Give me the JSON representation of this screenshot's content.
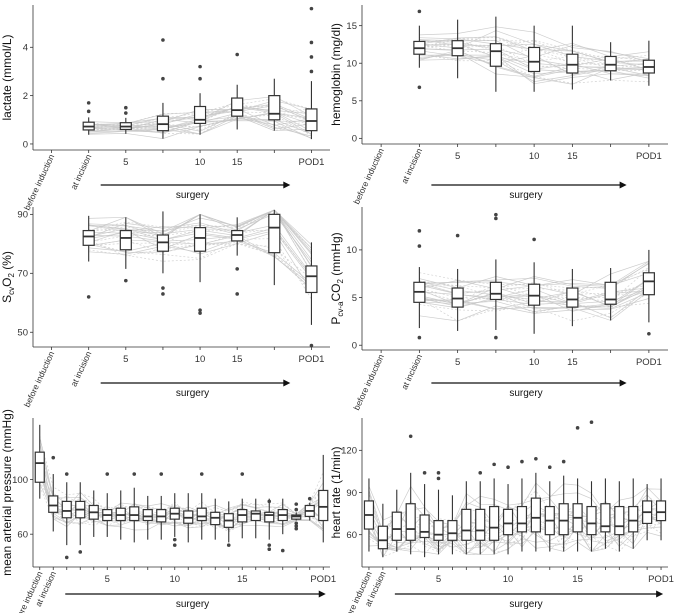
{
  "chart_data": [
    {
      "type": "box",
      "id": "lactate",
      "ylabel": "lactate (mmol/L)",
      "yticks": [
        0,
        2,
        4
      ],
      "ylim": [
        -0.25,
        5.75
      ],
      "x_positions": [
        0,
        1,
        2,
        3,
        4,
        5,
        6,
        7
      ],
      "boxes": [
        {
          "x": 1,
          "q1": 0.58,
          "med": 0.72,
          "q3": 0.9,
          "lo": 0.38,
          "hi": 1.1,
          "out": [
            1.35,
            1.7
          ]
        },
        {
          "x": 2,
          "q1": 0.6,
          "med": 0.72,
          "q3": 0.88,
          "lo": 0.42,
          "hi": 1.08,
          "out": [
            1.28,
            1.5
          ]
        },
        {
          "x": 3,
          "q1": 0.55,
          "med": 0.82,
          "q3": 1.15,
          "lo": 0.22,
          "hi": 1.7,
          "out": [
            2.7,
            4.3
          ]
        },
        {
          "x": 4,
          "q1": 0.85,
          "med": 1.0,
          "q3": 1.55,
          "lo": 0.38,
          "hi": 2.1,
          "out": [
            2.7,
            3.2
          ]
        },
        {
          "x": 5,
          "q1": 1.15,
          "med": 1.4,
          "q3": 1.9,
          "lo": 0.6,
          "hi": 2.45,
          "out": [
            3.7
          ]
        },
        {
          "x": 6,
          "q1": 1.0,
          "med": 1.25,
          "q3": 2.0,
          "lo": 0.55,
          "hi": 2.7,
          "out": []
        },
        {
          "x": 7,
          "q1": 0.55,
          "med": 0.95,
          "q3": 1.45,
          "lo": 0.2,
          "hi": 2.6,
          "out": [
            3.0,
            3.6,
            4.2,
            5.6
          ]
        }
      ]
    },
    {
      "type": "box",
      "id": "hemoglobin",
      "ylabel": "hemoglobin (mg/dl)",
      "yticks": [
        0,
        5,
        10,
        15
      ],
      "ylim": [
        -0.75,
        17.75
      ],
      "x_positions": [
        0,
        1,
        2,
        3,
        4,
        5,
        6,
        7
      ],
      "boxes": [
        {
          "x": 1,
          "q1": 11.2,
          "med": 12.0,
          "q3": 12.9,
          "lo": 9.4,
          "hi": 15.0,
          "out": [
            6.8,
            16.9
          ]
        },
        {
          "x": 2,
          "q1": 11.0,
          "med": 12.0,
          "q3": 13.0,
          "lo": 8.0,
          "hi": 15.8,
          "out": []
        },
        {
          "x": 3,
          "q1": 9.6,
          "med": 11.6,
          "q3": 12.6,
          "lo": 6.2,
          "hi": 16.2,
          "out": []
        },
        {
          "x": 4,
          "q1": 8.9,
          "med": 10.2,
          "q3": 12.1,
          "lo": 6.2,
          "hi": 15.0,
          "out": []
        },
        {
          "x": 5,
          "q1": 8.7,
          "med": 9.8,
          "q3": 11.2,
          "lo": 6.5,
          "hi": 15.0,
          "out": []
        },
        {
          "x": 6,
          "q1": 9.0,
          "med": 9.8,
          "q3": 10.9,
          "lo": 7.7,
          "hi": 12.8,
          "out": []
        },
        {
          "x": 7,
          "q1": 8.7,
          "med": 9.5,
          "q3": 10.4,
          "lo": 7.0,
          "hi": 13.0,
          "out": []
        }
      ]
    },
    {
      "type": "box",
      "id": "scvo2",
      "ylabel": "S(cv)O(2) (%)",
      "yticks": [
        50,
        70,
        90
      ],
      "ylim": [
        45,
        92.5
      ],
      "x_positions": [
        0,
        1,
        2,
        3,
        4,
        5,
        6,
        7
      ],
      "boxes": [
        {
          "x": 1,
          "q1": 79.5,
          "med": 82.5,
          "q3": 84.5,
          "lo": 74.0,
          "hi": 89.5,
          "out": [
            62.0
          ]
        },
        {
          "x": 2,
          "q1": 78.0,
          "med": 82.0,
          "q3": 84.5,
          "lo": 71.5,
          "hi": 89.0,
          "out": [
            67.5
          ]
        },
        {
          "x": 3,
          "q1": 77.5,
          "med": 80.5,
          "q3": 83.0,
          "lo": 70.0,
          "hi": 91.0,
          "out": [
            65.0,
            63.0
          ]
        },
        {
          "x": 4,
          "q1": 77.5,
          "med": 82.0,
          "q3": 85.5,
          "lo": 67.0,
          "hi": 90.0,
          "out": [
            57.5,
            56.5
          ]
        },
        {
          "x": 5,
          "q1": 81.0,
          "med": 83.0,
          "q3": 84.5,
          "lo": 76.0,
          "hi": 89.0,
          "out": [
            71.5,
            63.0
          ]
        },
        {
          "x": 6,
          "q1": 77.0,
          "med": 85.5,
          "q3": 90.0,
          "lo": 66.0,
          "hi": 91.5,
          "out": []
        },
        {
          "x": 7,
          "q1": 63.5,
          "med": 69.0,
          "q3": 72.5,
          "lo": 52.5,
          "hi": 80.5,
          "out": [
            45.5
          ]
        }
      ]
    },
    {
      "type": "box",
      "id": "pcva_co2",
      "ylabel": "P(cv-a)CO(2) (mmHg)",
      "yticks": [
        0,
        5,
        10
      ],
      "ylim": [
        -0.5,
        14.5
      ],
      "x_positions": [
        0,
        1,
        2,
        3,
        4,
        5,
        6,
        7
      ],
      "boxes": [
        {
          "x": 1,
          "q1": 4.5,
          "med": 5.6,
          "q3": 6.6,
          "lo": 1.8,
          "hi": 8.2,
          "out": [
            0.8,
            10.4,
            12.0
          ]
        },
        {
          "x": 2,
          "q1": 4.0,
          "med": 4.9,
          "q3": 6.0,
          "lo": 1.5,
          "hi": 8.0,
          "out": [
            11.5
          ]
        },
        {
          "x": 3,
          "q1": 4.8,
          "med": 5.4,
          "q3": 6.6,
          "lo": 1.6,
          "hi": 9.0,
          "out": [
            0.8,
            13.3,
            13.7
          ]
        },
        {
          "x": 4,
          "q1": 4.2,
          "med": 5.2,
          "q3": 6.4,
          "lo": 1.2,
          "hi": 8.7,
          "out": [
            11.1
          ]
        },
        {
          "x": 5,
          "q1": 4.0,
          "med": 4.8,
          "q3": 6.0,
          "lo": 2.0,
          "hi": 8.0,
          "out": []
        },
        {
          "x": 6,
          "q1": 4.3,
          "med": 4.8,
          "q3": 6.6,
          "lo": 2.6,
          "hi": 8.1,
          "out": []
        },
        {
          "x": 7,
          "q1": 5.3,
          "med": 6.7,
          "q3": 7.6,
          "lo": 2.4,
          "hi": 10.0,
          "out": [
            1.2
          ]
        }
      ]
    },
    {
      "type": "box",
      "id": "map",
      "ylabel": "mean arterial pressure (mmHg)",
      "yticks": [
        60,
        100
      ],
      "ylim": [
        36,
        145
      ],
      "boxes": [
        {
          "x": 0,
          "q1": 98.0,
          "med": 112.0,
          "q3": 120.0,
          "lo": 86.0,
          "hi": 140.0,
          "out": []
        },
        {
          "x": 1,
          "q1": 76.0,
          "med": 81.0,
          "q3": 88.0,
          "lo": 62.0,
          "hi": 104.0,
          "out": [
            116.0
          ]
        },
        {
          "x": 2,
          "q1": 72.0,
          "med": 77.0,
          "q3": 84.0,
          "lo": 52.0,
          "hi": 98.0,
          "out": [
            43.0,
            104.0
          ]
        },
        {
          "x": 3,
          "q1": 72.0,
          "med": 78.0,
          "q3": 84.0,
          "lo": 52.0,
          "hi": 98.0,
          "out": [
            47.0
          ]
        },
        {
          "x": 4,
          "q1": 71.0,
          "med": 76.0,
          "q3": 81.0,
          "lo": 58.0,
          "hi": 92.0,
          "out": []
        },
        {
          "x": 5,
          "q1": 70.0,
          "med": 74.0,
          "q3": 78.0,
          "lo": 58.0,
          "hi": 90.0,
          "out": [
            104.0
          ]
        },
        {
          "x": 6,
          "q1": 70.0,
          "med": 74.0,
          "q3": 79.0,
          "lo": 56.0,
          "hi": 92.0,
          "out": []
        },
        {
          "x": 7,
          "q1": 70.0,
          "med": 74.0,
          "q3": 80.0,
          "lo": 54.0,
          "hi": 94.0,
          "out": [
            104.0
          ]
        },
        {
          "x": 8,
          "q1": 70.0,
          "med": 73.0,
          "q3": 78.0,
          "lo": 56.0,
          "hi": 88.0,
          "out": []
        },
        {
          "x": 9,
          "q1": 69.0,
          "med": 73.0,
          "q3": 78.0,
          "lo": 56.0,
          "hi": 88.0,
          "out": [
            104.0
          ]
        },
        {
          "x": 10,
          "q1": 71.0,
          "med": 75.0,
          "q3": 79.0,
          "lo": 58.0,
          "hi": 90.0,
          "out": [
            52.0,
            56.0
          ]
        },
        {
          "x": 11,
          "q1": 68.0,
          "med": 72.0,
          "q3": 77.0,
          "lo": 54.0,
          "hi": 90.0,
          "out": []
        },
        {
          "x": 12,
          "q1": 70.0,
          "med": 73.0,
          "q3": 79.0,
          "lo": 56.0,
          "hi": 90.0,
          "out": [
            104.0
          ]
        },
        {
          "x": 13,
          "q1": 67.0,
          "med": 72.0,
          "q3": 76.0,
          "lo": 56.0,
          "hi": 86.0,
          "out": []
        },
        {
          "x": 14,
          "q1": 65.0,
          "med": 70.0,
          "q3": 75.0,
          "lo": 54.0,
          "hi": 84.0,
          "out": [
            52.0
          ]
        },
        {
          "x": 15,
          "q1": 69.0,
          "med": 74.0,
          "q3": 78.0,
          "lo": 57.0,
          "hi": 86.0,
          "out": [
            104.0
          ]
        },
        {
          "x": 16,
          "q1": 70.0,
          "med": 75.0,
          "q3": 77.0,
          "lo": 57.0,
          "hi": 86.0,
          "out": []
        },
        {
          "x": 17,
          "q1": 69.0,
          "med": 74.0,
          "q3": 76.0,
          "lo": 56.0,
          "hi": 86.0,
          "out": [
            84.0,
            52.0,
            49.0
          ]
        },
        {
          "x": 18,
          "q1": 70.0,
          "med": 74.0,
          "q3": 78.0,
          "lo": 60.0,
          "hi": 86.0,
          "out": [
            48.0
          ]
        },
        {
          "x": 19,
          "q1": 71.0,
          "med": 73.0,
          "q3": 74.0,
          "lo": 70.0,
          "hi": 76.0,
          "out": [
            82.0,
            78.0,
            68.0,
            66.0,
            64.0
          ]
        },
        {
          "x": 20,
          "q1": 73.0,
          "med": 77.0,
          "q3": 81.0,
          "lo": 70.0,
          "hi": 83.0,
          "out": [
            86.0
          ]
        },
        {
          "x": 21,
          "q1": 70.0,
          "med": 80.0,
          "q3": 92.0,
          "lo": 54.0,
          "hi": 118.0,
          "out": []
        }
      ]
    },
    {
      "type": "box",
      "id": "hr",
      "ylabel": "heart rate (1/min)",
      "yticks": [
        60,
        90,
        120
      ],
      "ylim": [
        37,
        143
      ],
      "boxes": [
        {
          "x": 0,
          "q1": 64.0,
          "med": 74.0,
          "q3": 84.0,
          "lo": 48.0,
          "hi": 100.0,
          "out": []
        },
        {
          "x": 1,
          "q1": 50.0,
          "med": 56.0,
          "q3": 66.0,
          "lo": 44.0,
          "hi": 82.0,
          "out": []
        },
        {
          "x": 2,
          "q1": 56.0,
          "med": 64.0,
          "q3": 76.0,
          "lo": 48.0,
          "hi": 92.0,
          "out": []
        },
        {
          "x": 3,
          "q1": 56.0,
          "med": 64.0,
          "q3": 82.0,
          "lo": 46.0,
          "hi": 104.0,
          "out": [
            130.0
          ]
        },
        {
          "x": 4,
          "q1": 58.0,
          "med": 62.0,
          "q3": 74.0,
          "lo": 44.0,
          "hi": 96.0,
          "out": [
            104.0
          ]
        },
        {
          "x": 5,
          "q1": 56.0,
          "med": 60.0,
          "q3": 70.0,
          "lo": 46.0,
          "hi": 92.0,
          "out": [
            100.0,
            104.0
          ]
        },
        {
          "x": 6,
          "q1": 56.0,
          "med": 61.0,
          "q3": 70.0,
          "lo": 46.0,
          "hi": 88.0,
          "out": []
        },
        {
          "x": 7,
          "q1": 56.0,
          "med": 63.0,
          "q3": 78.0,
          "lo": 46.0,
          "hi": 98.0,
          "out": []
        },
        {
          "x": 8,
          "q1": 56.0,
          "med": 63.0,
          "q3": 78.0,
          "lo": 46.0,
          "hi": 98.0,
          "out": [
            104.0
          ]
        },
        {
          "x": 9,
          "q1": 56.0,
          "med": 65.0,
          "q3": 80.0,
          "lo": 46.0,
          "hi": 100.0,
          "out": [
            110.0
          ]
        },
        {
          "x": 10,
          "q1": 60.0,
          "med": 68.0,
          "q3": 78.0,
          "lo": 46.0,
          "hi": 96.0,
          "out": [
            108.0
          ]
        },
        {
          "x": 11,
          "q1": 62.0,
          "med": 68.0,
          "q3": 80.0,
          "lo": 48.0,
          "hi": 100.0,
          "out": [
            112.0
          ]
        },
        {
          "x": 12,
          "q1": 62.0,
          "med": 72.0,
          "q3": 86.0,
          "lo": 48.0,
          "hi": 104.0,
          "out": [
            114.0
          ]
        },
        {
          "x": 13,
          "q1": 60.0,
          "med": 70.0,
          "q3": 80.0,
          "lo": 48.0,
          "hi": 98.0,
          "out": [
            108.0
          ]
        },
        {
          "x": 14,
          "q1": 60.0,
          "med": 70.0,
          "q3": 82.0,
          "lo": 48.0,
          "hi": 102.0,
          "out": [
            112.0
          ]
        },
        {
          "x": 15,
          "q1": 62.0,
          "med": 72.0,
          "q3": 82.0,
          "lo": 48.0,
          "hi": 100.0,
          "out": [
            136.0
          ]
        },
        {
          "x": 16,
          "q1": 60.0,
          "med": 68.0,
          "q3": 80.0,
          "lo": 48.0,
          "hi": 98.0,
          "out": [
            140.0
          ]
        },
        {
          "x": 17,
          "q1": 62.0,
          "med": 66.0,
          "q3": 82.0,
          "lo": 50.0,
          "hi": 100.0,
          "out": []
        },
        {
          "x": 18,
          "q1": 60.0,
          "med": 66.0,
          "q3": 80.0,
          "lo": 48.0,
          "hi": 98.0,
          "out": []
        },
        {
          "x": 19,
          "q1": 62.0,
          "med": 70.0,
          "q3": 80.0,
          "lo": 50.0,
          "hi": 100.0,
          "out": []
        },
        {
          "x": 20,
          "q1": 68.0,
          "med": 76.0,
          "q3": 84.0,
          "lo": 56.0,
          "hi": 96.0,
          "out": []
        },
        {
          "x": 21,
          "q1": 70.0,
          "med": 76.0,
          "q3": 84.0,
          "lo": 56.0,
          "hi": 100.0,
          "out": []
        }
      ]
    }
  ],
  "labels": {
    "before_induction": "before induction",
    "at_incision": "at incision",
    "pod1": "POD1",
    "surgery": "surgery",
    "t5": "5",
    "t10": "10",
    "t15": "15",
    "y_scvo2": {
      "s": "S",
      "sub1": "cv",
      "o": "O",
      "sub2": "2",
      "unit": " (%)"
    },
    "y_pco2": {
      "p": "P",
      "sub1": "cv-a",
      "co": "CO",
      "sub2": "2",
      "unit": " (mmHg)"
    }
  }
}
